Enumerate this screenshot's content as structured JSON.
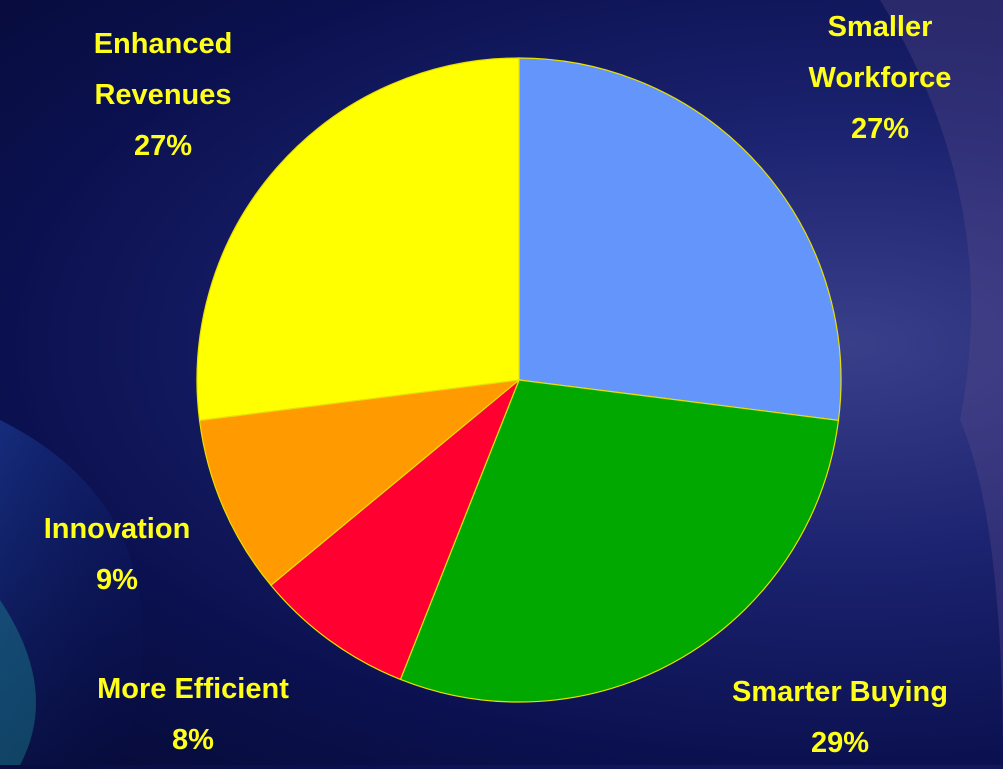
{
  "chart_data": {
    "type": "pie",
    "categories": [
      "Smaller Workforce",
      "Smarter Buying",
      "More Efficient",
      "Innovation",
      "Enhanced Revenues"
    ],
    "values": [
      27,
      29,
      8,
      9,
      27
    ],
    "value_labels": [
      "27%",
      "29%",
      "8%",
      "9%",
      "27%"
    ],
    "colors": [
      "#6495fa",
      "#00a800",
      "#ff0030",
      "#ff9a00",
      "#ffff00"
    ]
  }
}
